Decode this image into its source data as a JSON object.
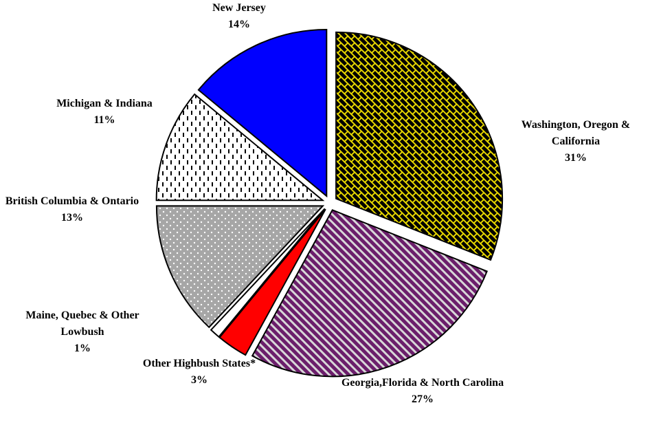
{
  "chart_data": {
    "type": "pie",
    "categories": [
      "Washington, Oregon & California",
      "Georgia,Florida & North Carolina",
      "Other Highbush States*",
      "Maine, Quebec & Other Lowbush",
      "British Columbia & Ontario",
      "Michigan & Indiana",
      "New Jersey"
    ],
    "values": [
      31,
      27,
      3,
      1,
      13,
      11,
      14
    ],
    "value_labels": [
      "31%",
      "27%",
      "3%",
      "1%",
      "13%",
      "11%",
      "14%"
    ],
    "colors": [
      "#000000",
      "#6b1e6b",
      "#ff0000",
      "#ffffff",
      "#a6a6a6",
      "#ffffff",
      "#0000ff"
    ]
  }
}
